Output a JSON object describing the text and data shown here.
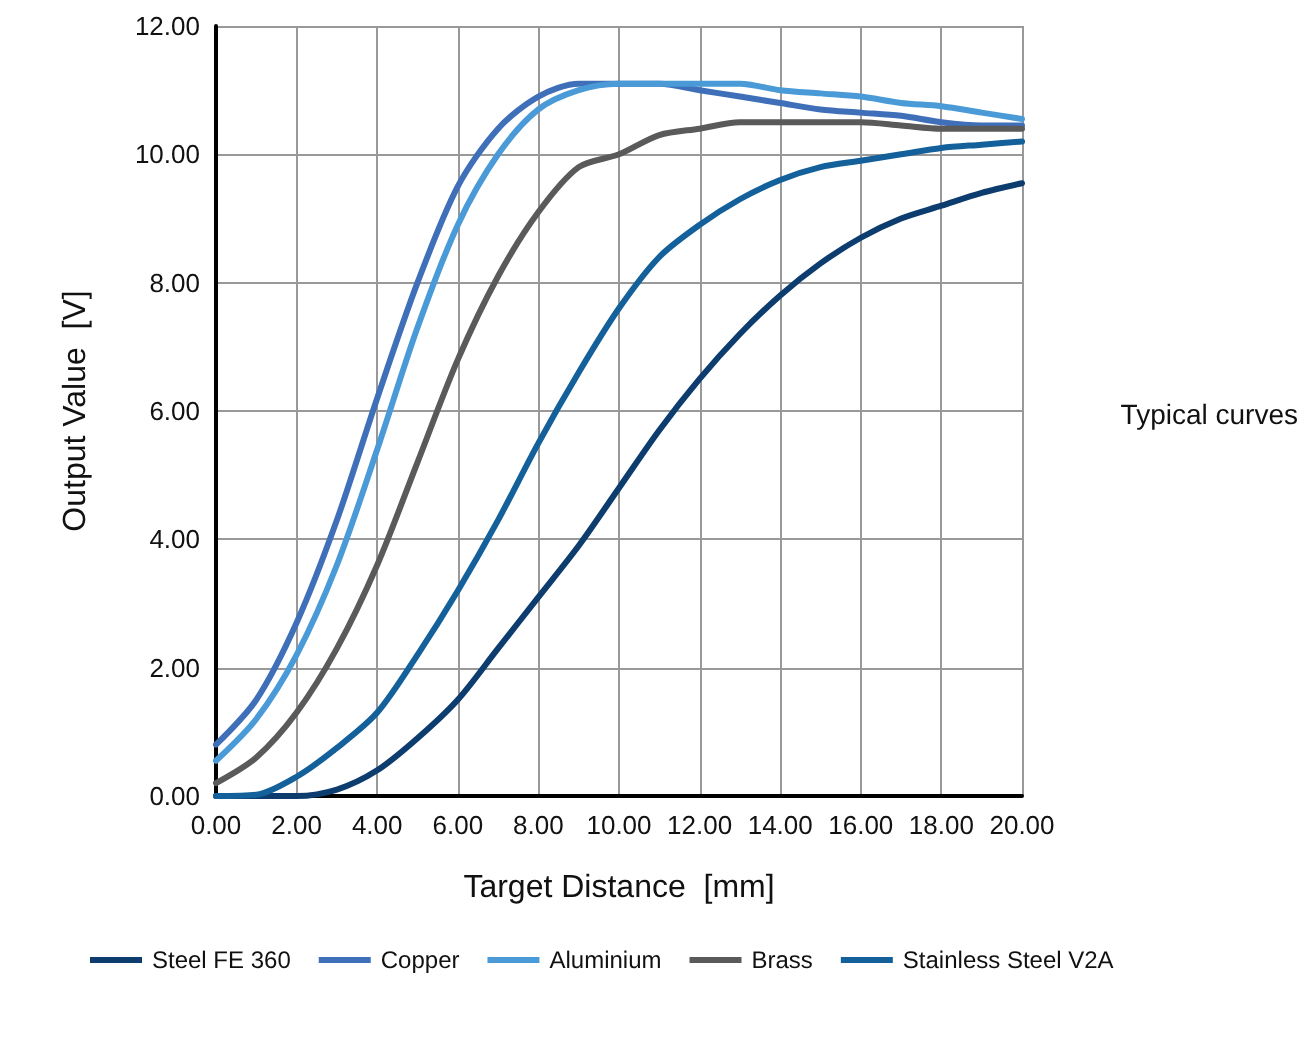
{
  "chart_data": {
    "type": "line",
    "xlabel": "Target Distance  [mm]",
    "ylabel": "Output Value  [V]",
    "annotations": [
      "Typical curves"
    ],
    "x": [
      0,
      1,
      2,
      3,
      4,
      5,
      6,
      7,
      8,
      9,
      10,
      11,
      12,
      13,
      14,
      15,
      16,
      17,
      18,
      19,
      20
    ],
    "series": [
      {
        "name": "Steel FE 360",
        "color": "#0d3c6e",
        "values": [
          0,
          0,
          0,
          0.1,
          0.4,
          0.9,
          1.5,
          2.3,
          3.1,
          3.9,
          4.8,
          5.7,
          6.5,
          7.2,
          7.8,
          8.3,
          8.7,
          9.0,
          9.2,
          9.4,
          9.55
        ]
      },
      {
        "name": "Copper",
        "color": "#3f6fb8",
        "values": [
          0.8,
          1.5,
          2.7,
          4.3,
          6.2,
          8.0,
          9.5,
          10.4,
          10.9,
          11.1,
          11.1,
          11.1,
          11.0,
          10.9,
          10.8,
          10.7,
          10.65,
          10.6,
          10.5,
          10.45,
          10.45
        ]
      },
      {
        "name": "Aluminium",
        "color": "#4a9ad8",
        "values": [
          0.55,
          1.2,
          2.2,
          3.6,
          5.4,
          7.3,
          8.9,
          10.0,
          10.7,
          11.0,
          11.1,
          11.1,
          11.1,
          11.1,
          11.0,
          10.95,
          10.9,
          10.8,
          10.75,
          10.65,
          10.55
        ]
      },
      {
        "name": "Brass",
        "color": "#5a5a5a",
        "values": [
          0.2,
          0.6,
          1.3,
          2.3,
          3.6,
          5.2,
          6.8,
          8.1,
          9.1,
          9.8,
          10.0,
          10.3,
          10.4,
          10.5,
          10.5,
          10.5,
          10.5,
          10.45,
          10.4,
          10.4,
          10.4
        ]
      },
      {
        "name": "Stainless Steel V2A",
        "color": "#13609a",
        "values": [
          0,
          0.02,
          0.3,
          0.75,
          1.3,
          2.2,
          3.2,
          4.3,
          5.5,
          6.6,
          7.6,
          8.4,
          8.9,
          9.3,
          9.6,
          9.8,
          9.9,
          10.0,
          10.1,
          10.15,
          10.2
        ]
      }
    ],
    "xlim": [
      0,
      20
    ],
    "xticks": [
      {
        "value": 0,
        "label": "0.00"
      },
      {
        "value": 2,
        "label": "2.00"
      },
      {
        "value": 4,
        "label": "4.00"
      },
      {
        "value": 6,
        "label": "6.00"
      },
      {
        "value": 8,
        "label": "8.00"
      },
      {
        "value": 10,
        "label": "10.00"
      },
      {
        "value": 12,
        "label": "12.00"
      },
      {
        "value": 14,
        "label": "14.00"
      },
      {
        "value": 16,
        "label": "16.00"
      },
      {
        "value": 18,
        "label": "18.00"
      },
      {
        "value": 20,
        "label": "20.00"
      }
    ],
    "ylim": [
      0,
      12
    ],
    "yticks": [
      {
        "value": 0,
        "label": "0.00"
      },
      {
        "value": 2,
        "label": "2.00"
      },
      {
        "value": 4,
        "label": "4.00"
      },
      {
        "value": 6,
        "label": "6.00"
      },
      {
        "value": 8,
        "label": "8.00"
      },
      {
        "value": 10,
        "label": "10.00"
      },
      {
        "value": 12,
        "label": "12.00"
      }
    ],
    "grid": true,
    "legend": "bottom",
    "marker": "none",
    "line_style": "solid"
  }
}
